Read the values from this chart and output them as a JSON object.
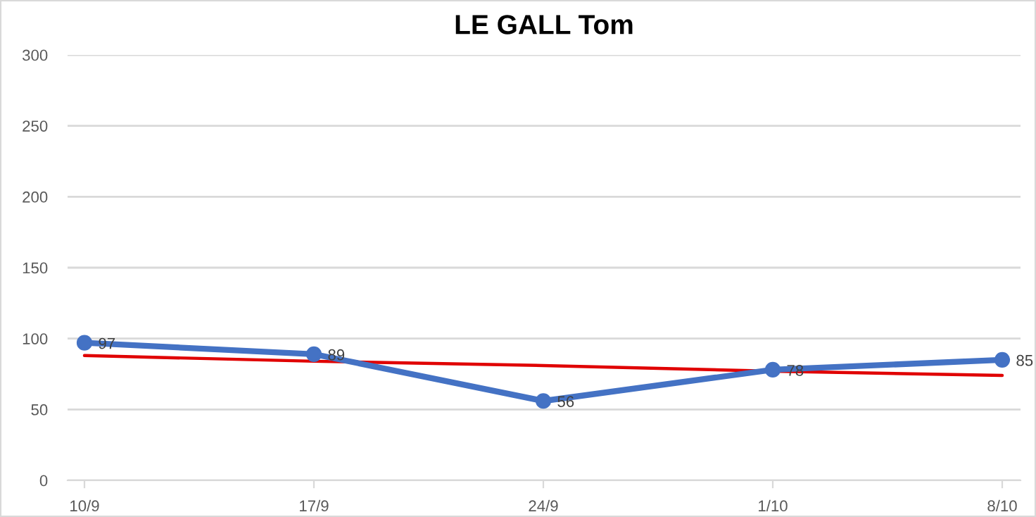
{
  "chart_data": {
    "type": "line",
    "title": "LE GALL Tom",
    "categories": [
      "10/9",
      "17/9",
      "24/9",
      "1/10",
      "8/10"
    ],
    "series": [
      {
        "color": "#4472c4",
        "values": [
          97,
          89,
          56,
          78,
          85
        ],
        "marker": "circle",
        "value_labels": [
          "97",
          "89",
          "56",
          "78",
          "85"
        ]
      },
      {
        "color": "#e00000",
        "values": [
          88,
          84,
          81,
          77,
          74
        ],
        "marker": "none"
      }
    ],
    "ylim": [
      0,
      300
    ],
    "yticks": [
      0,
      50,
      100,
      150,
      200,
      250,
      300
    ],
    "grid": "y",
    "line_style": "solid",
    "legend": false
  }
}
